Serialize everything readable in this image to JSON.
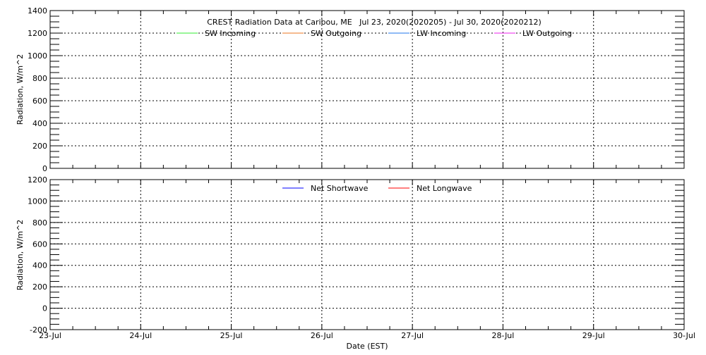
{
  "chart_data": [
    {
      "type": "line",
      "title": "CREST Radiation Data at Caribou, ME   Jul 23, 2020(2020205) - Jul 30, 2020(2020212)",
      "xlabel": "",
      "ylabel": "Radiation, W/m^2",
      "ylim": [
        0,
        1400
      ],
      "yticks": [
        "0",
        "200",
        "400",
        "600",
        "800",
        "1000",
        "1200",
        "1400"
      ],
      "xlim": [
        "2020-07-23",
        "2020-07-30"
      ],
      "grid": true,
      "legend_position": "top-center",
      "series": [
        {
          "name": "SW Incoming",
          "color": "#33ee33",
          "values": []
        },
        {
          "name": "SW Outgoing",
          "color": "#ee7722",
          "values": []
        },
        {
          "name": "LW Incoming",
          "color": "#2277ee",
          "values": []
        },
        {
          "name": "LW Outgoing",
          "color": "#ee22ee",
          "values": []
        }
      ]
    },
    {
      "type": "line",
      "title": "",
      "xlabel": "Date (EST)",
      "ylabel": "Radiation, W/m^2",
      "ylim": [
        -200,
        1200
      ],
      "yticks": [
        "-200",
        "0",
        "200",
        "400",
        "600",
        "800",
        "1000",
        "1200"
      ],
      "xlim": [
        "2020-07-23",
        "2020-07-30"
      ],
      "xticks": [
        "23-Jul",
        "24-Jul",
        "25-Jul",
        "26-Jul",
        "27-Jul",
        "28-Jul",
        "29-Jul",
        "30-Jul"
      ],
      "grid": true,
      "legend_position": "top-center",
      "series": [
        {
          "name": "Net Shortwave",
          "color": "#0000ff",
          "values": []
        },
        {
          "name": "Net Longwave",
          "color": "#ff0000",
          "values": []
        }
      ]
    }
  ]
}
